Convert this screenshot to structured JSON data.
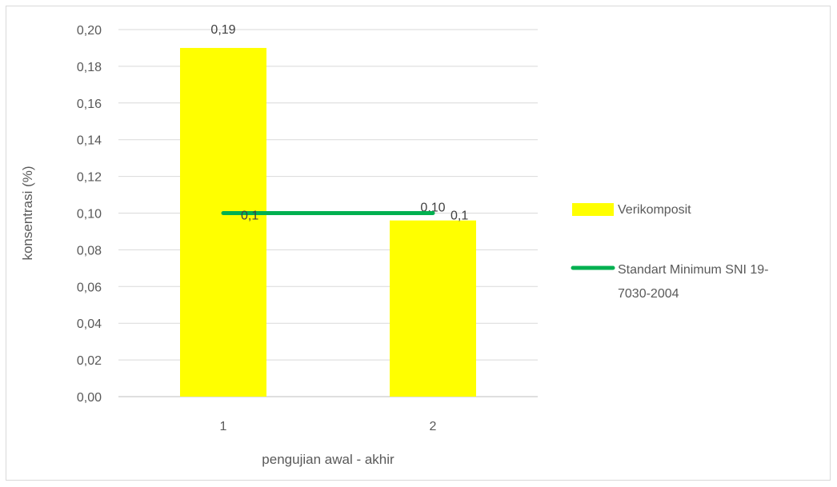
{
  "chart_data": {
    "type": "bar",
    "categories": [
      "1",
      "2"
    ],
    "series": [
      {
        "name": "Verikomposit",
        "type": "bar",
        "color": "#ffff00",
        "values": [
          0.19,
          0.096
        ],
        "labels": [
          "0,19",
          "0,10"
        ]
      },
      {
        "name": "Standart Minimum SNI 19-7030-2004",
        "type": "line",
        "color": "#00b050",
        "values": [
          0.1,
          0.1
        ],
        "labels": [
          "0,1",
          "0,1"
        ]
      }
    ],
    "xlabel": "pengujian awal - akhir",
    "ylabel": "konsentrasi (%)",
    "ylim": [
      0,
      0.2
    ],
    "yticks": [
      0,
      0.02,
      0.04,
      0.06,
      0.08,
      0.1,
      0.12,
      0.14,
      0.16,
      0.18,
      0.2
    ],
    "ytick_labels": [
      "0,00",
      "0,02",
      "0,04",
      "0,06",
      "0,08",
      "0,10",
      "0,12",
      "0,14",
      "0,16",
      "0,18",
      "0,20"
    ],
    "legend": {
      "position": "right",
      "entries": [
        {
          "label_lines": [
            "Verikomposit"
          ]
        },
        {
          "label_lines": [
            "Standart Minimum SNI 19-",
            "7030-2004"
          ]
        }
      ]
    },
    "grid": true
  }
}
